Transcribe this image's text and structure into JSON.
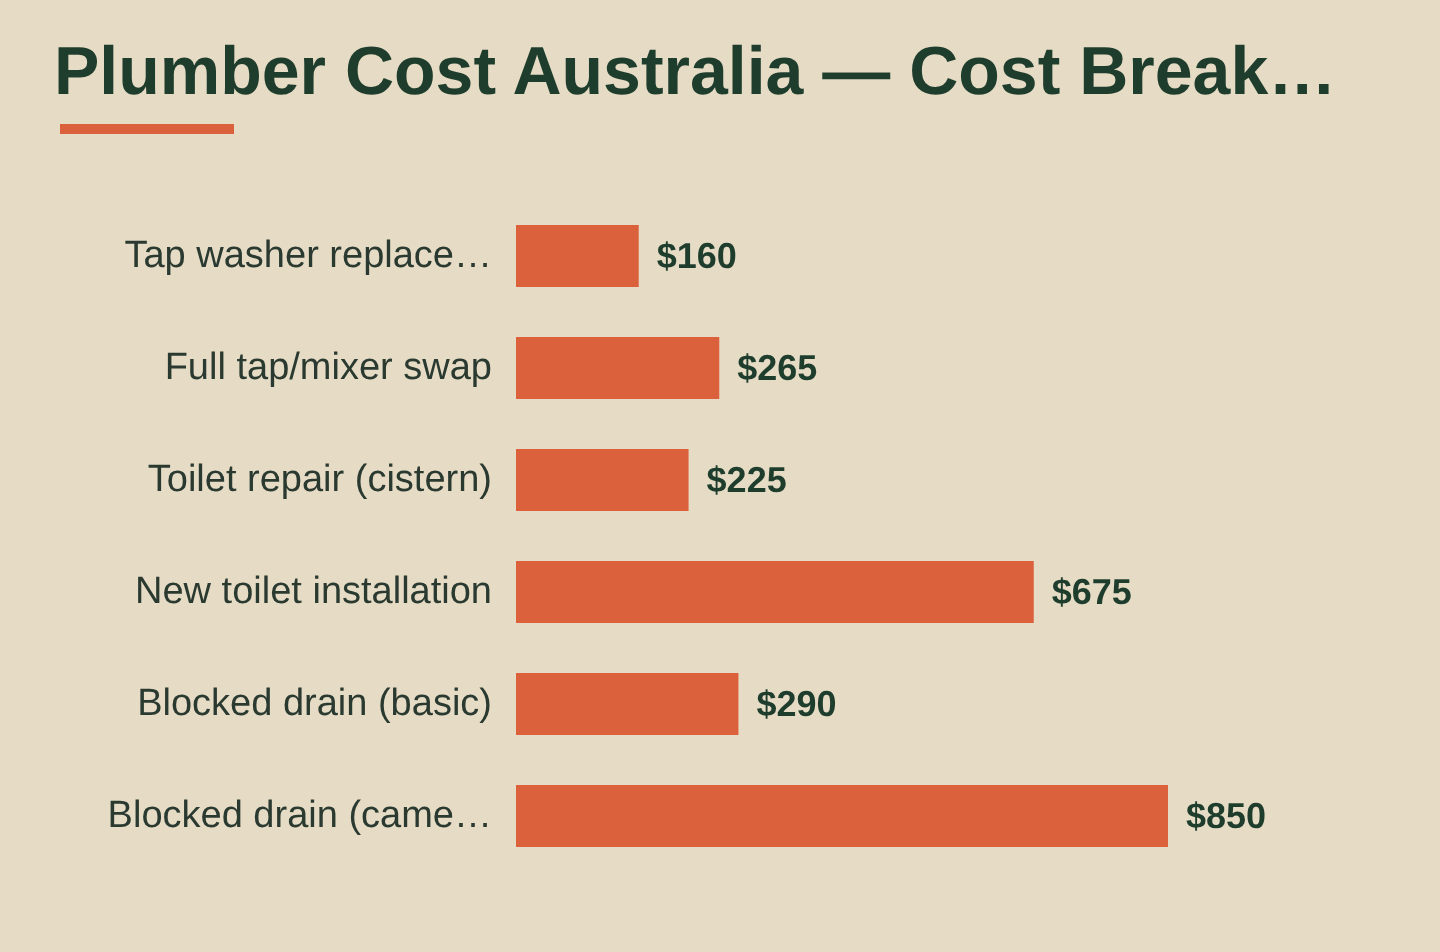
{
  "chart_data": {
    "type": "bar",
    "orientation": "horizontal",
    "title": "Plumber Cost Australia — Cost Break…",
    "categories": [
      "Tap washer replace…",
      "Full tap/mixer swap",
      "Toilet repair (cistern)",
      "New toilet installation",
      "Blocked drain (basic)",
      "Blocked drain (came…"
    ],
    "values": [
      160,
      265,
      225,
      675,
      290,
      850
    ],
    "value_labels": [
      "$160",
      "$265",
      "$225",
      "$675",
      "$290",
      "$850"
    ],
    "color": "#db613c"
  }
}
